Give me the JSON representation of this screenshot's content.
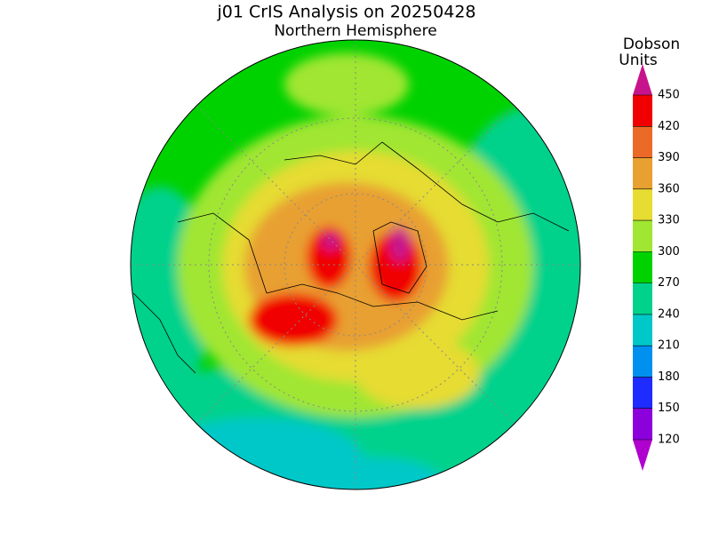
{
  "header": {
    "title": "j01 CrIS Analysis on 20250428",
    "subtitle": "Northern Hemisphere"
  },
  "colorbar": {
    "title": [
      "Dobson",
      "Units"
    ],
    "ticks": [
      120,
      150,
      180,
      210,
      240,
      270,
      300,
      330,
      360,
      390,
      420,
      450
    ],
    "colors": [
      "#b000d0",
      "#8c00dc",
      "#1e2cff",
      "#0090f0",
      "#00c8c8",
      "#00d28c",
      "#00d200",
      "#a0e632",
      "#e6dc32",
      "#e8a030",
      "#ec6a28",
      "#f00000",
      "#c8148c"
    ]
  }
}
